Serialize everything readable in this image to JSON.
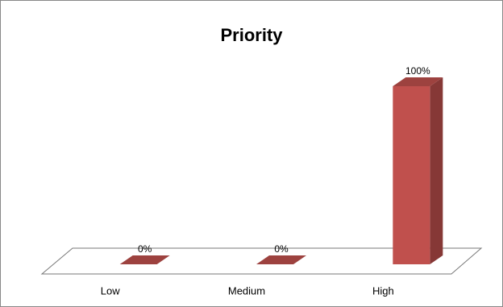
{
  "chart_data": {
    "type": "bar3d",
    "title": "Priority",
    "categories": [
      "Low",
      "Medium",
      "High"
    ],
    "values": [
      0,
      0,
      100
    ],
    "value_labels": [
      "0%",
      "0%",
      "100%"
    ],
    "color": "#c0504d"
  }
}
